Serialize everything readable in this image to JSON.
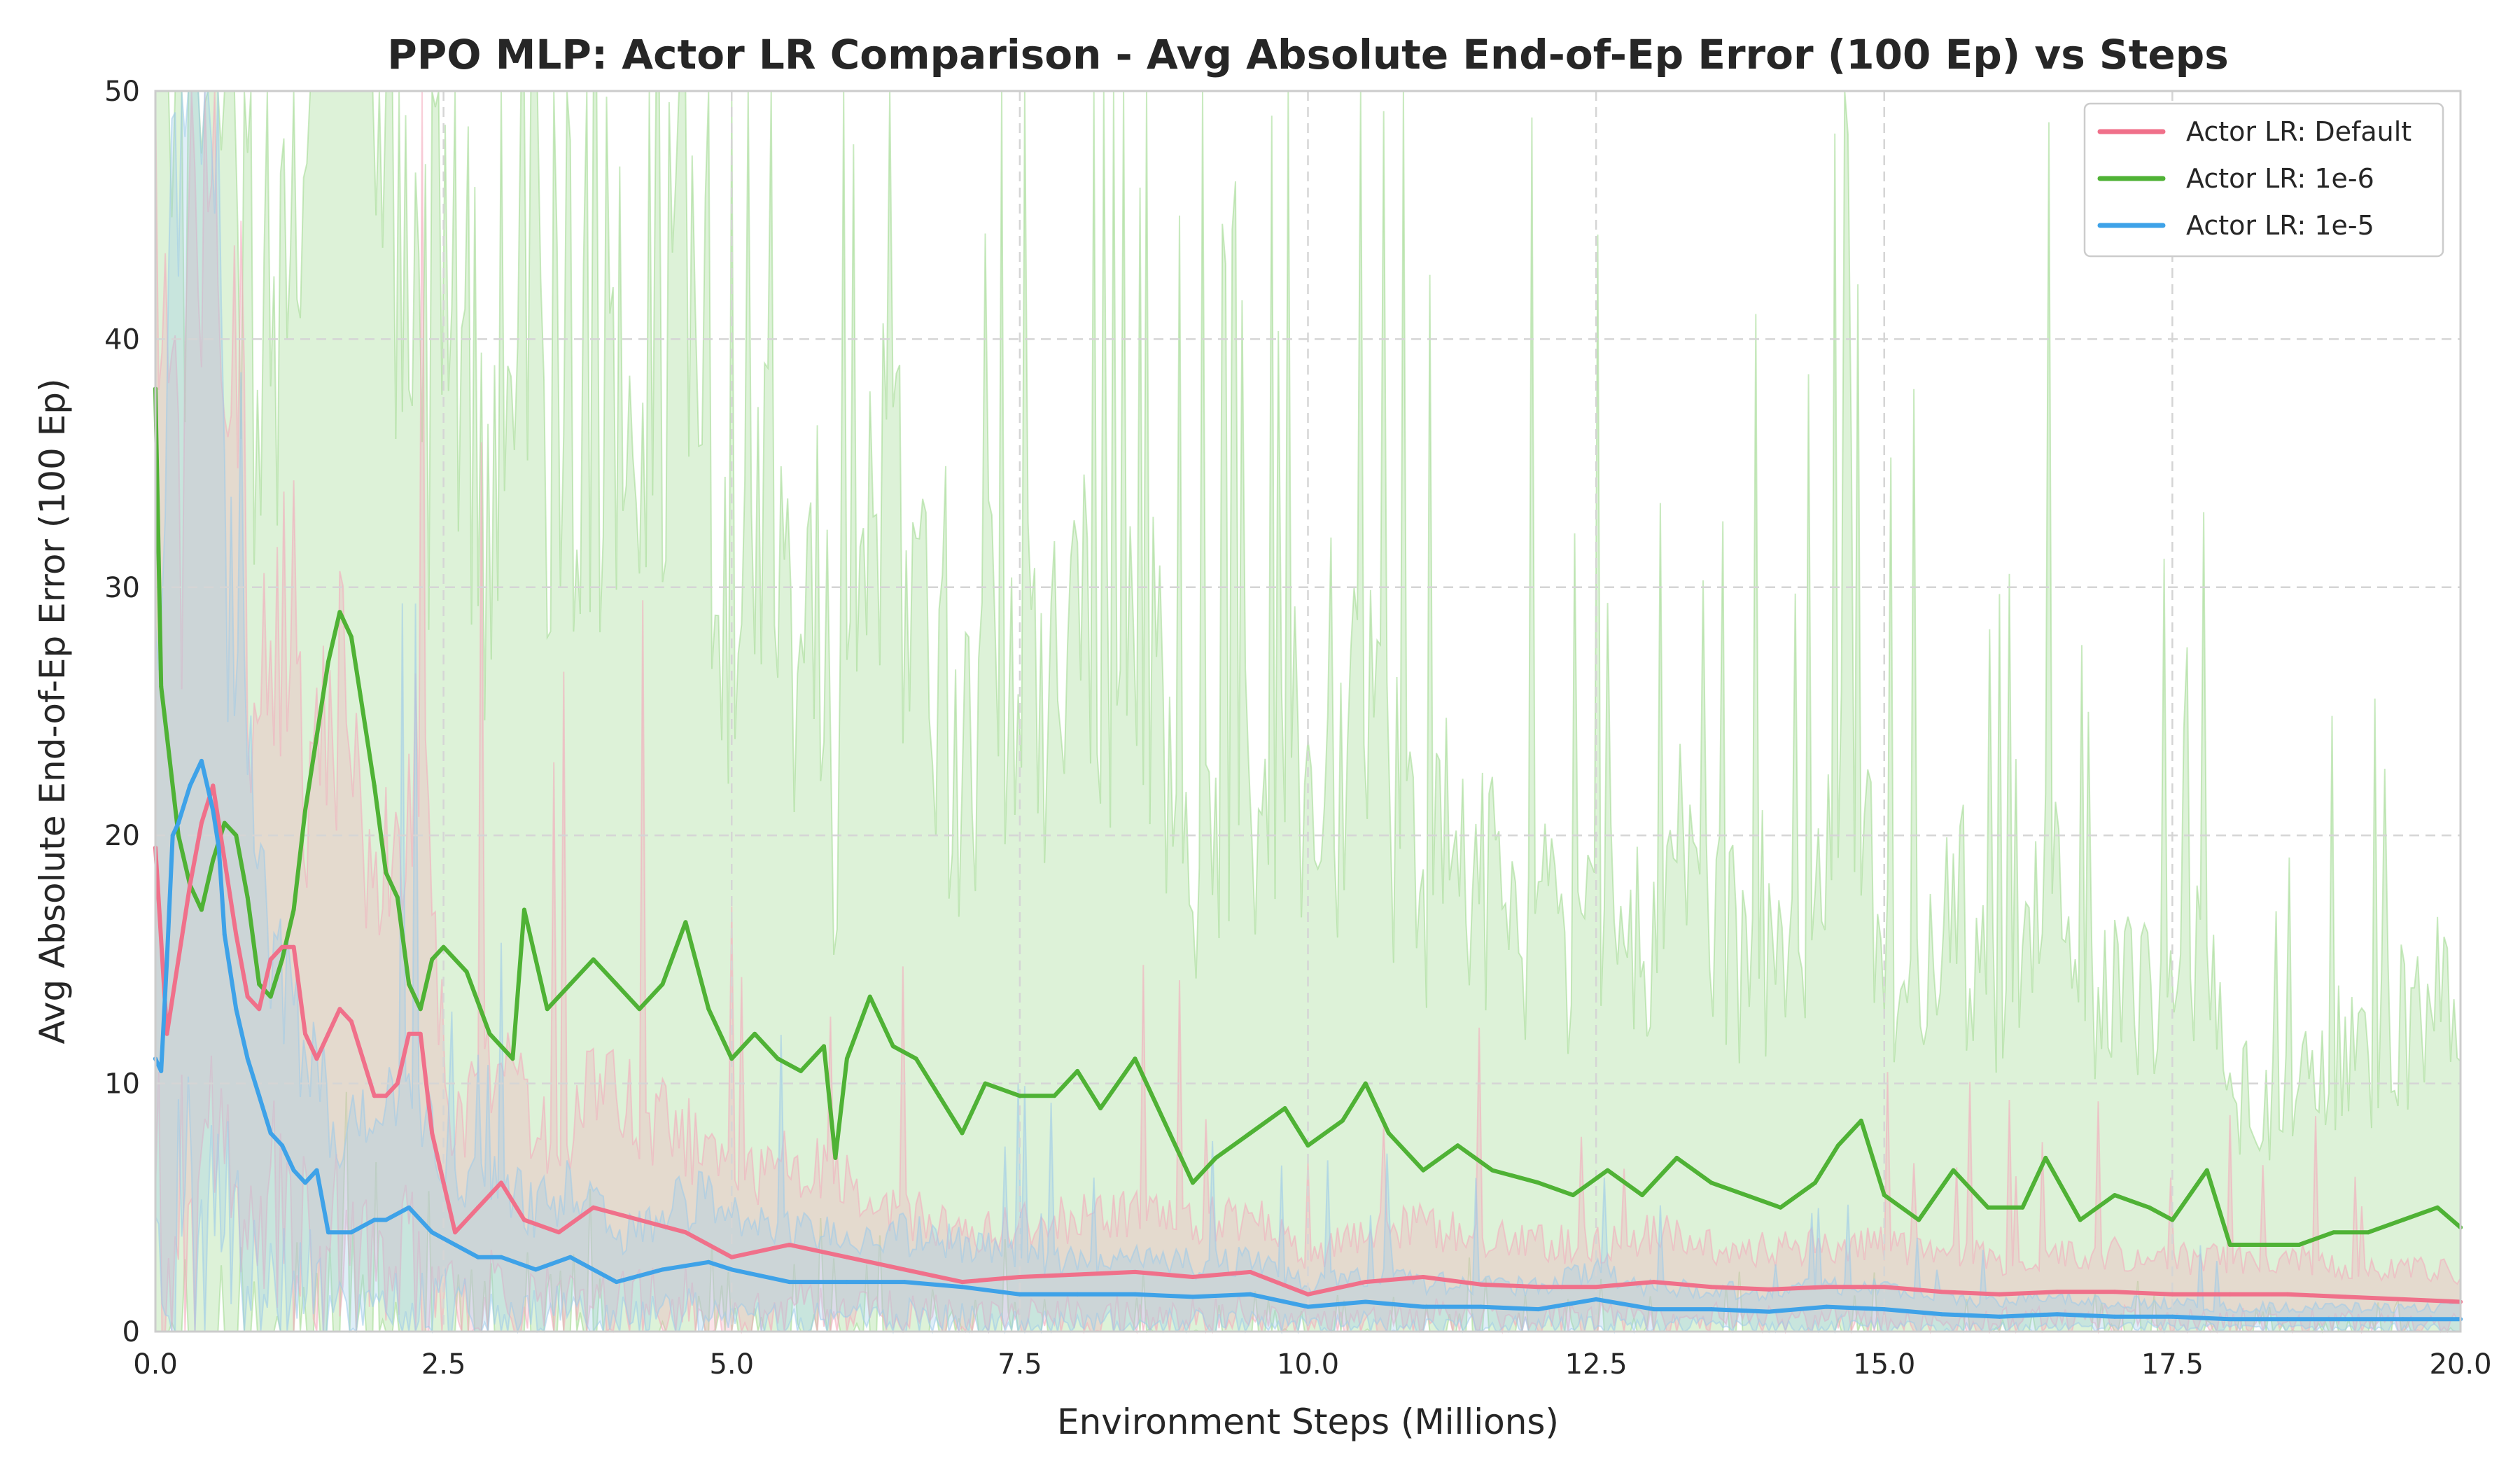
{
  "chart_data": {
    "type": "line",
    "title": "PPO MLP: Actor LR Comparison - Avg Absolute End-of-Ep Error (100 Ep) vs Steps",
    "xlabel": "Environment Steps (Millions)",
    "ylabel": "Avg Absolute End-of-Ep Error (100 Ep)",
    "xlim": [
      0,
      20
    ],
    "ylim": [
      0,
      50
    ],
    "xticks": [
      0.0,
      2.5,
      5.0,
      7.5,
      10.0,
      12.5,
      15.0,
      17.5,
      20.0
    ],
    "xtick_labels": [
      "0.0",
      "2.5",
      "5.0",
      "7.5",
      "10.0",
      "12.5",
      "15.0",
      "17.5",
      "20.0"
    ],
    "yticks": [
      0,
      10,
      20,
      30,
      40,
      50
    ],
    "ytick_labels": [
      "0",
      "10",
      "20",
      "30",
      "40",
      "50"
    ],
    "grid": true,
    "legend_position": "top-right",
    "series": [
      {
        "name": "Actor LR: Default",
        "color": "#f0708a",
        "band_color": "#f4a9bb",
        "x": [
          0.0,
          0.1,
          0.2,
          0.3,
          0.4,
          0.5,
          0.6,
          0.7,
          0.8,
          0.9,
          1.0,
          1.1,
          1.2,
          1.3,
          1.4,
          1.5,
          1.6,
          1.7,
          1.8,
          1.9,
          2.0,
          2.1,
          2.2,
          2.3,
          2.4,
          2.5,
          2.6,
          2.8,
          3.0,
          3.2,
          3.5,
          3.8,
          4.2,
          4.6,
          5.0,
          5.5,
          6.0,
          6.5,
          7.0,
          7.5,
          8.0,
          8.5,
          9.0,
          9.5,
          10.0,
          10.5,
          11.0,
          11.5,
          12.0,
          12.5,
          13.0,
          13.5,
          14.0,
          14.5,
          15.0,
          15.5,
          16.0,
          16.5,
          17.0,
          17.5,
          18.0,
          18.5,
          19.0,
          19.5,
          20.0
        ],
        "y": [
          19.5,
          12.0,
          15.0,
          18.0,
          20.5,
          22.0,
          19.0,
          16.0,
          13.5,
          13.0,
          15.0,
          15.5,
          15.5,
          12.0,
          11.0,
          12.0,
          13.0,
          12.5,
          11.0,
          9.5,
          9.5,
          10.0,
          12.0,
          12.0,
          8.0,
          6.0,
          4.0,
          5.0,
          6.0,
          4.5,
          4.0,
          5.0,
          4.5,
          4.0,
          3.0,
          3.5,
          3.0,
          2.5,
          2.0,
          2.2,
          2.3,
          2.4,
          2.2,
          2.4,
          1.5,
          2.0,
          2.2,
          1.9,
          1.8,
          1.8,
          2.0,
          1.8,
          1.7,
          1.8,
          1.8,
          1.6,
          1.5,
          1.6,
          1.6,
          1.5,
          1.5,
          1.5,
          1.4,
          1.3,
          1.2
        ]
      },
      {
        "name": "Actor LR: 1e-6",
        "color": "#4fb235",
        "band_color": "#9fd98e",
        "x": [
          0.0,
          0.05,
          0.1,
          0.2,
          0.3,
          0.4,
          0.5,
          0.6,
          0.7,
          0.8,
          0.9,
          1.0,
          1.1,
          1.2,
          1.3,
          1.4,
          1.5,
          1.6,
          1.7,
          1.8,
          1.9,
          2.0,
          2.1,
          2.2,
          2.3,
          2.4,
          2.5,
          2.7,
          2.9,
          3.1,
          3.2,
          3.4,
          3.6,
          3.8,
          4.0,
          4.2,
          4.4,
          4.6,
          4.8,
          5.0,
          5.2,
          5.4,
          5.6,
          5.8,
          5.9,
          6.0,
          6.2,
          6.4,
          6.6,
          6.8,
          7.0,
          7.2,
          7.5,
          7.8,
          8.0,
          8.2,
          8.5,
          8.8,
          9.0,
          9.2,
          9.5,
          9.8,
          10.0,
          10.3,
          10.5,
          10.7,
          11.0,
          11.3,
          11.6,
          12.0,
          12.3,
          12.6,
          12.9,
          13.2,
          13.5,
          13.8,
          14.1,
          14.4,
          14.6,
          14.8,
          15.0,
          15.3,
          15.6,
          15.9,
          16.2,
          16.4,
          16.7,
          17.0,
          17.3,
          17.5,
          17.8,
          18.0,
          18.3,
          18.6,
          18.9,
          19.2,
          19.5,
          19.8,
          20.0
        ],
        "y": [
          38.0,
          26.0,
          24.0,
          20.0,
          18.0,
          17.0,
          19.0,
          20.5,
          20.0,
          17.5,
          14.0,
          13.5,
          15.0,
          17.0,
          21.0,
          24.0,
          27.0,
          29.0,
          28.0,
          25.0,
          22.0,
          18.5,
          17.5,
          14.0,
          13.0,
          15.0,
          15.5,
          14.5,
          12.0,
          11.0,
          17.0,
          13.0,
          14.0,
          15.0,
          14.0,
          13.0,
          14.0,
          16.5,
          13.0,
          11.0,
          12.0,
          11.0,
          10.5,
          11.5,
          7.0,
          11.0,
          13.5,
          11.5,
          11.0,
          9.5,
          8.0,
          10.0,
          9.5,
          9.5,
          10.5,
          9.0,
          11.0,
          8.0,
          6.0,
          7.0,
          8.0,
          9.0,
          7.5,
          8.5,
          10.0,
          8.0,
          6.5,
          7.5,
          6.5,
          6.0,
          5.5,
          6.5,
          5.5,
          7.0,
          6.0,
          5.5,
          5.0,
          6.0,
          7.5,
          8.5,
          5.5,
          4.5,
          6.5,
          5.0,
          5.0,
          7.0,
          4.5,
          5.5,
          5.0,
          4.5,
          6.5,
          3.5,
          3.5,
          3.5,
          4.0,
          4.0,
          4.5,
          5.0,
          4.2
        ]
      },
      {
        "name": "Actor LR: 1e-5",
        "color": "#3ea2e8",
        "band_color": "#9ccbe9",
        "x": [
          0.0,
          0.05,
          0.1,
          0.15,
          0.2,
          0.3,
          0.4,
          0.5,
          0.55,
          0.6,
          0.7,
          0.8,
          0.9,
          1.0,
          1.1,
          1.2,
          1.3,
          1.4,
          1.5,
          1.7,
          1.9,
          2.0,
          2.2,
          2.4,
          2.6,
          2.8,
          3.0,
          3.3,
          3.6,
          4.0,
          4.4,
          4.8,
          5.0,
          5.5,
          6.0,
          6.5,
          7.0,
          7.5,
          8.0,
          8.5,
          9.0,
          9.5,
          10.0,
          10.5,
          11.0,
          11.5,
          12.0,
          12.5,
          13.0,
          13.5,
          14.0,
          14.5,
          15.0,
          15.5,
          16.0,
          16.5,
          17.0,
          17.5,
          18.0,
          18.5,
          19.0,
          19.5,
          20.0
        ],
        "y": [
          11.0,
          10.5,
          15.0,
          20.0,
          20.5,
          22.0,
          23.0,
          21.0,
          19.5,
          16.0,
          13.0,
          11.0,
          9.5,
          8.0,
          7.5,
          6.5,
          6.0,
          6.5,
          4.0,
          4.0,
          4.5,
          4.5,
          5.0,
          4.0,
          3.5,
          3.0,
          3.0,
          2.5,
          3.0,
          2.0,
          2.5,
          2.8,
          2.5,
          2.0,
          2.0,
          2.0,
          1.8,
          1.5,
          1.5,
          1.5,
          1.4,
          1.5,
          1.0,
          1.2,
          1.0,
          1.0,
          0.9,
          1.3,
          0.9,
          0.9,
          0.8,
          1.0,
          0.9,
          0.7,
          0.6,
          0.7,
          0.6,
          0.6,
          0.5,
          0.5,
          0.5,
          0.5,
          0.5
        ]
      }
    ]
  }
}
